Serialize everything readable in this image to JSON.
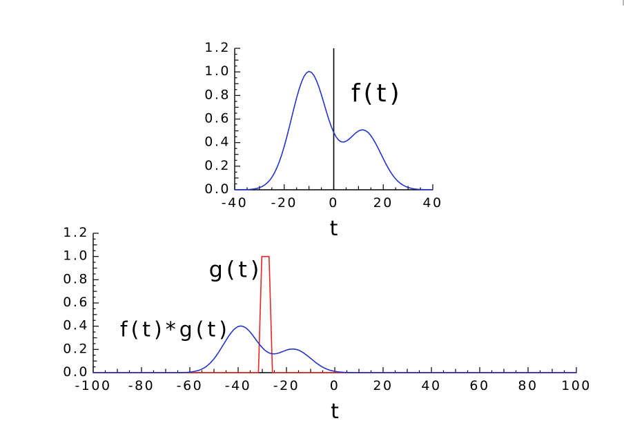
{
  "figure": {
    "background": "#ffffff",
    "colors": {
      "axis": "#000000",
      "f_blue": "#2233cc",
      "g_red": "#ee2222"
    }
  },
  "chart_data": [
    {
      "id": "f-plot",
      "type": "line",
      "title": "",
      "xlabel": "t",
      "ylabel": "",
      "xlim": [
        -40,
        40
      ],
      "ylim": [
        0,
        1.2
      ],
      "grid": false,
      "xticks": {
        "major": [
          -40,
          -20,
          0,
          20,
          40
        ],
        "labels": [
          "-40",
          "-20",
          "0",
          "20",
          "40"
        ],
        "minor_step": 5,
        "mid_step": 10
      },
      "yticks": {
        "major": [
          0,
          0.2,
          0.4,
          0.6,
          0.8,
          1.0,
          1.2
        ],
        "labels": [
          "0.0",
          "0.2",
          "0.4",
          "0.6",
          "0.8",
          "1.0",
          "1.2"
        ],
        "minor_step": 0.05,
        "mid_step": 0.1
      },
      "vlines": [
        {
          "x": 0,
          "color": "#000000"
        }
      ],
      "series": [
        {
          "id": "f-curve",
          "label": "f(t)",
          "color": "#2233cc",
          "x_start": -40,
          "x_step": 1,
          "y": [
            0,
            0,
            0,
            0.001,
            0.001,
            0.002,
            0.003,
            0.005,
            0.008,
            0.012,
            0.018,
            0.027,
            0.039,
            0.056,
            0.077,
            0.105,
            0.141,
            0.185,
            0.237,
            0.298,
            0.368,
            0.445,
            0.527,
            0.613,
            0.698,
            0.779,
            0.852,
            0.914,
            0.962,
            0.992,
            1.004,
            0.996,
            0.97,
            0.927,
            0.872,
            0.807,
            0.736,
            0.665,
            0.598,
            0.537,
            0.486,
            0.447,
            0.421,
            0.407,
            0.405,
            0.412,
            0.426,
            0.445,
            0.465,
            0.484,
            0.499,
            0.507,
            0.508,
            0.5,
            0.484,
            0.459,
            0.427,
            0.39,
            0.349,
            0.307,
            0.264,
            0.222,
            0.184,
            0.149,
            0.118,
            0.092,
            0.07,
            0.053,
            0.039,
            0.028,
            0.02,
            0.014,
            0.009,
            0.006,
            0.004,
            0.003,
            0.002,
            0.001,
            0.001,
            0,
            0
          ]
        }
      ],
      "annotations": [
        {
          "text": "f(t)",
          "x": 17.5,
          "y": 0.82,
          "color": "#2233cc",
          "size": 36
        }
      ]
    },
    {
      "id": "convolution-plot",
      "type": "line",
      "title": "",
      "xlabel": "t",
      "ylabel": "",
      "xlim": [
        -100,
        100
      ],
      "ylim": [
        0,
        1.2
      ],
      "grid": false,
      "xticks": {
        "major": [
          -100,
          -80,
          -60,
          -40,
          -20,
          0,
          20,
          40,
          60,
          80,
          100
        ],
        "labels": [
          "-100",
          "-80",
          "-60",
          "-40",
          "-20",
          "0",
          "20",
          "40",
          "60",
          "80",
          "100"
        ],
        "minor_step": 5,
        "mid_step": 10
      },
      "yticks": {
        "major": [
          0,
          0.2,
          0.4,
          0.6,
          0.8,
          1.0,
          1.2
        ],
        "labels": [
          "0.0",
          "0.2",
          "0.4",
          "0.6",
          "0.8",
          "1.0",
          "1.2"
        ],
        "minor_step": 0.05,
        "mid_step": 0.1
      },
      "vlines": [],
      "series": [
        {
          "id": "g-pulse",
          "label": "g(t)",
          "color": "#ee2222",
          "x": [
            -100,
            -31.6,
            -30.2,
            -27.2,
            -25.8,
            100
          ],
          "y": [
            0,
            0,
            1,
            1,
            0,
            0
          ]
        },
        {
          "id": "convolution-curve",
          "label": "f(t)*g(t)",
          "color": "#2233cc",
          "x_start": -69,
          "x_step": 1,
          "extend_flat_to": [
            -100,
            100
          ],
          "y": [
            0,
            0,
            0,
            0,
            0,
            0.001,
            0.001,
            0.002,
            0.003,
            0.005,
            0.007,
            0.011,
            0.016,
            0.022,
            0.031,
            0.042,
            0.056,
            0.074,
            0.095,
            0.119,
            0.147,
            0.178,
            0.211,
            0.245,
            0.279,
            0.312,
            0.341,
            0.366,
            0.385,
            0.397,
            0.402,
            0.398,
            0.388,
            0.371,
            0.349,
            0.323,
            0.294,
            0.266,
            0.239,
            0.215,
            0.194,
            0.179,
            0.168,
            0.163,
            0.162,
            0.165,
            0.17,
            0.178,
            0.186,
            0.194,
            0.2,
            0.203,
            0.203,
            0.2,
            0.194,
            0.184,
            0.171,
            0.156,
            0.14,
            0.123,
            0.106,
            0.089,
            0.074,
            0.06,
            0.047,
            0.037,
            0.028,
            0.021,
            0.016,
            0.011,
            0.008,
            0.006,
            0.004,
            0.002,
            0.002,
            0.001,
            0.001,
            0,
            0,
            0
          ]
        }
      ],
      "annotations": [
        {
          "text": "g(t)",
          "x": -41,
          "y": 0.885,
          "color": "#ee2222",
          "size": 32
        },
        {
          "text": "f(t)*g(t)",
          "x": -66,
          "y": 0.37,
          "color": "#2233cc",
          "size": 30
        }
      ]
    }
  ]
}
